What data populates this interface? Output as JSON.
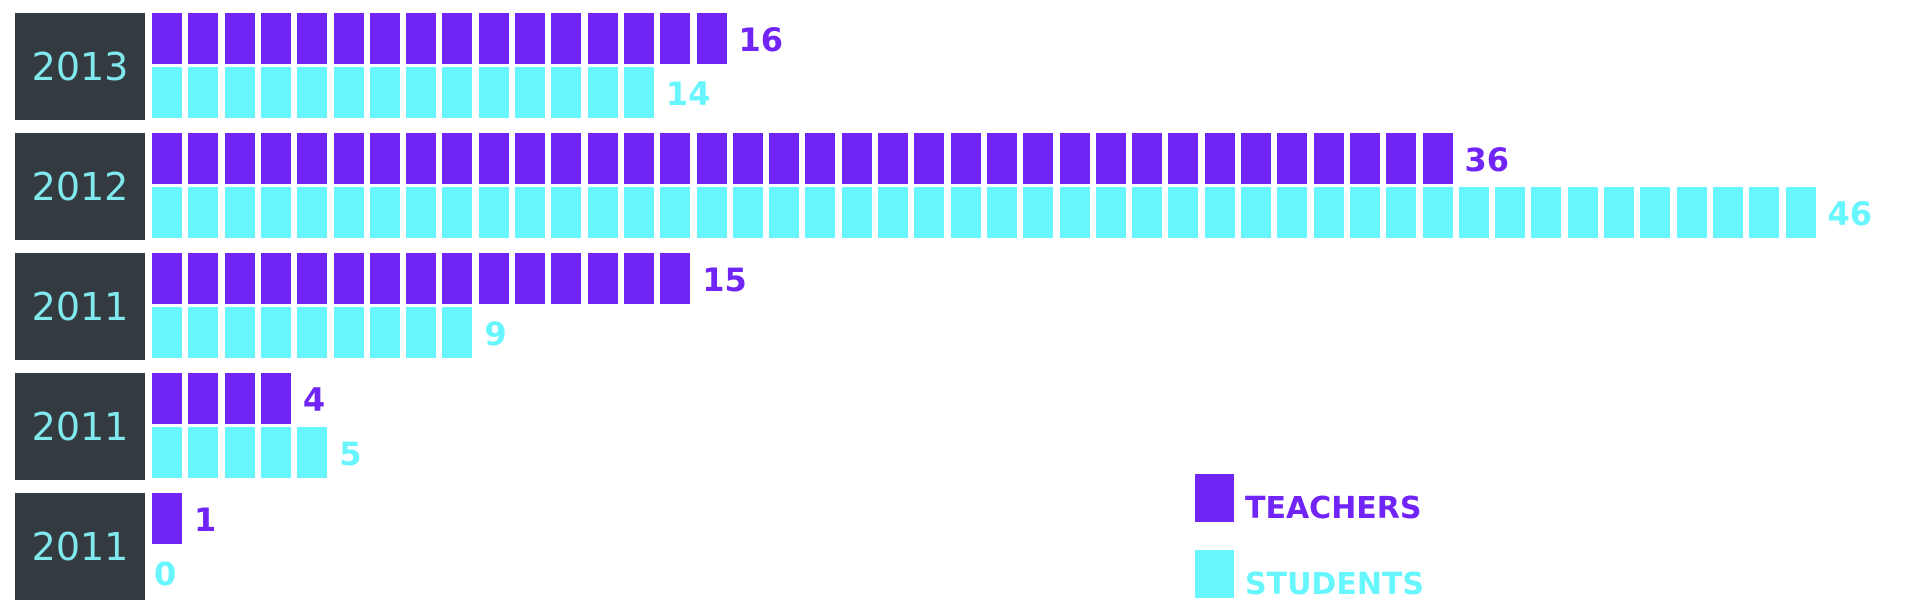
{
  "colors": {
    "teachers": "#7024f5",
    "students": "#68f6fe",
    "year_box_bg": "#333b40",
    "year_text": "#7fe9ee"
  },
  "chart_data": {
    "type": "bar",
    "orientation": "horizontal",
    "style": "pictograph-squares",
    "categories": [
      "2013",
      "2012",
      "2011",
      "2011",
      "2011"
    ],
    "series": [
      {
        "name": "TEACHERS",
        "values": [
          16,
          36,
          15,
          4,
          1
        ]
      },
      {
        "name": "STUDENTS",
        "values": [
          14,
          46,
          9,
          5,
          0
        ]
      }
    ],
    "legend": {
      "position": "bottom-right",
      "items": [
        "TEACHERS",
        "STUDENTS"
      ]
    }
  }
}
